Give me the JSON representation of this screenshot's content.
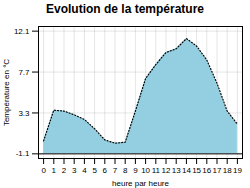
{
  "chart_data": {
    "type": "area",
    "title": "Evolution de la température",
    "xlabel": "heure par heure",
    "ylabel": "Température en °C",
    "x": [
      0,
      1,
      2,
      3,
      4,
      5,
      6,
      7,
      8,
      9,
      10,
      11,
      12,
      13,
      14,
      15,
      16,
      17,
      18,
      19
    ],
    "values": [
      0.3,
      3.6,
      3.5,
      3.1,
      2.6,
      1.6,
      0.4,
      0.05,
      0.15,
      3.5,
      7.0,
      8.5,
      9.8,
      10.2,
      11.3,
      10.5,
      9.0,
      6.5,
      3.5,
      2.1
    ],
    "baseline": -1.1,
    "color": "#93cfe0",
    "line_style": "dotted",
    "xlim": [
      -0.5,
      19.5
    ],
    "ylim": [
      -1.6,
      12.6
    ],
    "xticks": [
      0,
      1,
      2,
      3,
      4,
      5,
      6,
      7,
      8,
      9,
      10,
      11,
      12,
      13,
      14,
      15,
      16,
      17,
      18,
      19
    ],
    "yticks": [
      -1.1,
      3.3,
      7.7,
      12.1
    ],
    "grid": true
  }
}
